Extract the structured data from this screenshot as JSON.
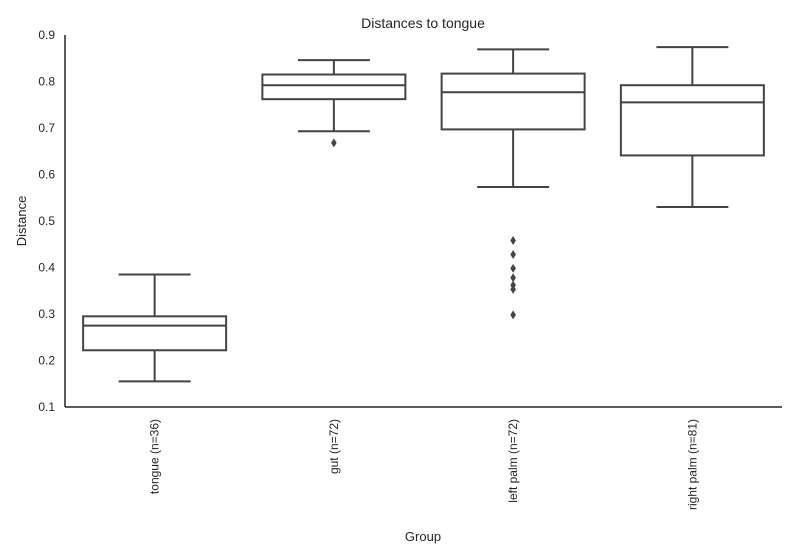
{
  "chart_data": {
    "type": "box",
    "title": "Distances to tongue",
    "xlabel": "Group",
    "ylabel": "Distance",
    "ylim": [
      0.1,
      0.9
    ],
    "yticks": [
      "0.1",
      "0.2",
      "0.3",
      "0.4",
      "0.5",
      "0.6",
      "0.7",
      "0.8",
      "0.9"
    ],
    "grid": false,
    "categories": [
      "tongue (n=36)",
      "gut (n=72)",
      "left palm (n=72)",
      "right palm (n=81)"
    ],
    "boxes": [
      {
        "whisker_low": 0.155,
        "q1": 0.222,
        "median": 0.275,
        "q3": 0.295,
        "whisker_high": 0.385,
        "outliers": []
      },
      {
        "whisker_low": 0.693,
        "q1": 0.762,
        "median": 0.792,
        "q3": 0.815,
        "whisker_high": 0.846,
        "outliers": [
          0.668
        ]
      },
      {
        "whisker_low": 0.573,
        "q1": 0.697,
        "median": 0.777,
        "q3": 0.817,
        "whisker_high": 0.869,
        "outliers": [
          0.458,
          0.428,
          0.398,
          0.378,
          0.362,
          0.353,
          0.298
        ]
      },
      {
        "whisker_low": 0.53,
        "q1": 0.641,
        "median": 0.755,
        "q3": 0.792,
        "whisker_high": 0.874,
        "outliers": []
      }
    ],
    "colors": {
      "line": "#444444",
      "axis": "#262626",
      "background": "#ffffff"
    }
  }
}
